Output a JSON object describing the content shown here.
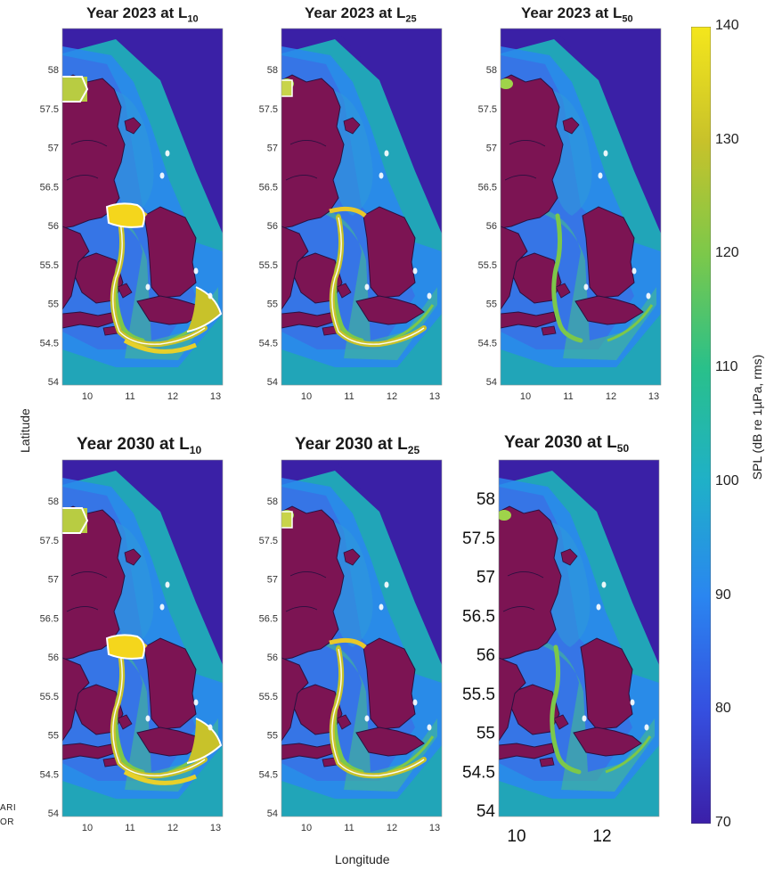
{
  "figure": {
    "panels": [
      {
        "id": "p1",
        "title_prefix": "Year 2023 at L",
        "title_sub": "10",
        "row": 0,
        "col": 0,
        "hot": 3
      },
      {
        "id": "p2",
        "title_prefix": "Year 2023 at L",
        "title_sub": "25",
        "row": 0,
        "col": 1,
        "hot": 2
      },
      {
        "id": "p3",
        "title_prefix": "Year 2023 at L",
        "title_sub": "50",
        "row": 0,
        "col": 2,
        "hot": 1
      },
      {
        "id": "p4",
        "title_prefix": "Year 2030 at L",
        "title_sub": "10",
        "row": 1,
        "col": 0,
        "hot": 3
      },
      {
        "id": "p5",
        "title_prefix": "Year 2030 at L",
        "title_sub": "25",
        "row": 1,
        "col": 1,
        "hot": 2
      },
      {
        "id": "p6",
        "title_prefix": "Year 2030 at L",
        "title_sub": "50",
        "row": 1,
        "col": 2,
        "hot": 1
      }
    ],
    "lat_ticks": [
      "58",
      "57.5",
      "57",
      "56.5",
      "56",
      "55.5",
      "55",
      "54.5",
      "54"
    ],
    "lon_ticks": [
      "10",
      "11",
      "12",
      "13"
    ],
    "lon_ticks_sparse": [
      "10",
      "12"
    ],
    "latitude_label": "Latitude",
    "longitude_label": "Longitude",
    "colorbar": {
      "label": "SPL (dB re 1µPa, rms)",
      "ticks": [
        "140",
        "130",
        "120",
        "110",
        "100",
        "90",
        "80",
        "70"
      ],
      "min": 70,
      "max": 140,
      "colors": [
        "#3b1fa8",
        "#3550e0",
        "#2a86f0",
        "#1fb0c8",
        "#29c08a",
        "#7cc84a",
        "#c8c22a",
        "#f4e61c"
      ]
    },
    "cut_text": [
      "ARI",
      "OR"
    ],
    "colors": {
      "sea": "#3a20a6",
      "land": "#7c1453",
      "coast": "#2a1040",
      "contour": "#ffffff"
    }
  }
}
